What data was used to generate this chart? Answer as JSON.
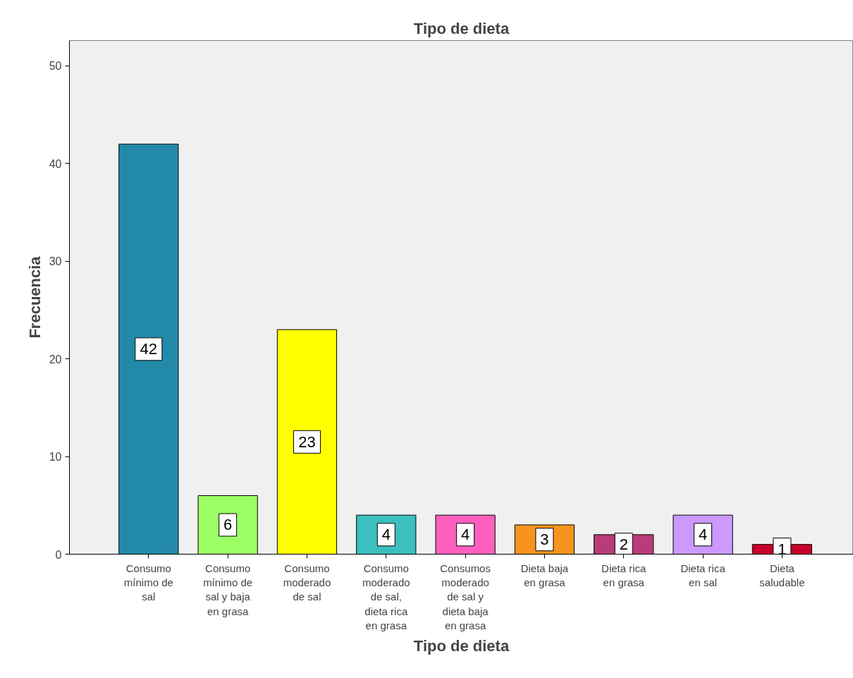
{
  "chart_data": {
    "type": "bar",
    "title": "Tipo de dieta",
    "xlabel": "Tipo de dieta",
    "ylabel": "Frecuencia",
    "categories": [
      "Consumo mínimo de sal",
      "Consumo mínimo de sal y baja en grasa",
      "Consumo moderado de sal",
      "Consumo moderado de sal, dieta rica en grasa",
      "Consumos moderado de sal y dieta baja en grasa",
      "Dieta baja en grasa",
      "Dieta rica en grasa",
      "Dieta rica en sal",
      "Dieta saludable"
    ],
    "values": [
      42,
      6,
      23,
      4,
      4,
      3,
      2,
      4,
      1
    ],
    "colors": [
      "#2389a8",
      "#9cff66",
      "#ffff00",
      "#3cbfbf",
      "#ff5fbf",
      "#f7941d",
      "#b83c7a",
      "#cc99ff",
      "#c8002a"
    ],
    "ylim": [
      0,
      52.6
    ],
    "yticks": [
      0,
      10,
      20,
      30,
      40,
      50
    ],
    "grid": false,
    "data_labels": true
  }
}
